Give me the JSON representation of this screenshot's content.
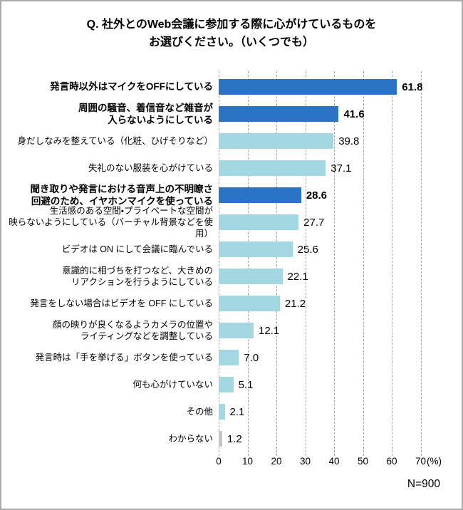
{
  "title": {
    "line1": "Q. 社外とのWeb会議に参加する際に心がけているものを",
    "line2": "お選びください。（いくつでも）"
  },
  "colors": {
    "dark": "#2A73C5",
    "light": "#A3D8E3",
    "gray": "#C6C6C6",
    "grid": "#A3A3A3"
  },
  "footnote": "N=900",
  "chart_data": {
    "type": "bar",
    "orientation": "horizontal",
    "title": "Q. 社外とのWeb会議に参加する際に心がけているものをお選びください。（いくつでも）",
    "xlabel": "(%)",
    "xlim": [
      0,
      70
    ],
    "x_ticks": [
      0,
      10,
      20,
      30,
      40,
      50,
      60,
      70
    ],
    "x_unit": "(%)",
    "grid": "dashed-vertical",
    "sample": "N=900",
    "items": [
      {
        "label_lines": [
          "発言時以外はマイクをOFFにしている"
        ],
        "value": 61.8,
        "emphasis": true,
        "color": "dark"
      },
      {
        "label_lines": [
          "周囲の騒音、着信音など雑音が",
          "入らないようにしている"
        ],
        "value": 41.6,
        "emphasis": true,
        "color": "dark"
      },
      {
        "label_lines": [
          "身だしなみを整えている（化粧、ひげそりなど）"
        ],
        "value": 39.8,
        "emphasis": false,
        "color": "light"
      },
      {
        "label_lines": [
          "失礼のない服装を心がけている"
        ],
        "value": 37.1,
        "emphasis": false,
        "color": "light"
      },
      {
        "label_lines": [
          "聞き取りや発言における音声上の不明瞭さ",
          "回避のため、イヤホンマイクを使っている"
        ],
        "value": 28.6,
        "emphasis": true,
        "color": "dark"
      },
      {
        "label_lines": [
          "生活感のある空間・プライベートな空間が",
          "映らないようにしている（バーチャル背景などを使用）"
        ],
        "value": 27.7,
        "emphasis": false,
        "color": "light"
      },
      {
        "label_lines": [
          "ビデオは ON にして会議に臨んでいる"
        ],
        "value": 25.6,
        "emphasis": false,
        "color": "light"
      },
      {
        "label_lines": [
          "意識的に相づちを打つなど、大きめの",
          "リアクションを行うようにしている"
        ],
        "value": 22.1,
        "emphasis": false,
        "color": "light"
      },
      {
        "label_lines": [
          "発言をしない場合はビデオを OFF にしている"
        ],
        "value": 21.2,
        "emphasis": false,
        "color": "light"
      },
      {
        "label_lines": [
          "顔の映りが良くなるようカメラの位置や",
          "ライティングなどを調整している"
        ],
        "value": 12.1,
        "emphasis": false,
        "color": "light"
      },
      {
        "label_lines": [
          "発言時は「手を挙げる」ボタンを使っている"
        ],
        "value": 7.0,
        "emphasis": false,
        "color": "light"
      },
      {
        "label_lines": [
          "何も心がけていない"
        ],
        "value": 5.1,
        "emphasis": false,
        "color": "light"
      },
      {
        "label_lines": [
          "その他"
        ],
        "value": 2.1,
        "emphasis": false,
        "color": "light"
      },
      {
        "label_lines": [
          "わからない"
        ],
        "value": 1.2,
        "emphasis": false,
        "color": "gray"
      }
    ]
  }
}
